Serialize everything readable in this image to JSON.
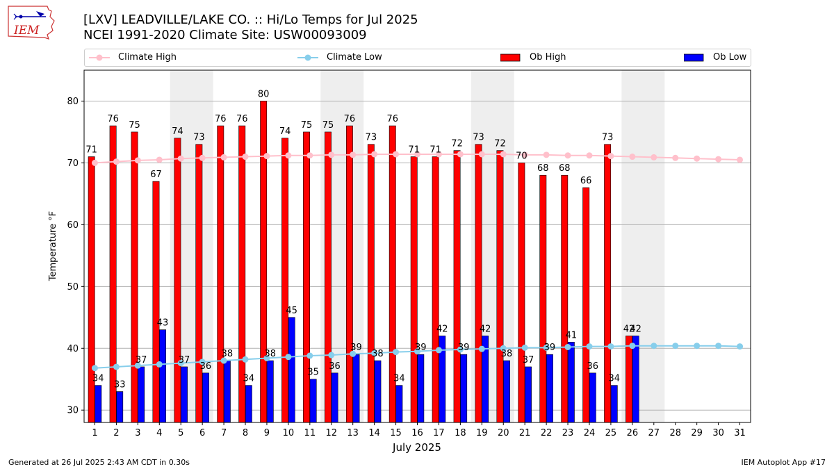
{
  "header": {
    "logo_text": "IEM",
    "title_line1": "[LXV] LEADVILLE/LAKE CO. :: Hi/Lo Temps for Jul 2025",
    "title_line2": "NCEI 1991-2020 Climate Site: USW00093009"
  },
  "legend": {
    "climate_high": "Climate High",
    "climate_low": "Climate Low",
    "ob_high": "Ob High",
    "ob_low": "Ob Low"
  },
  "colors": {
    "ob_high": "#ff0000",
    "ob_low": "#0000ff",
    "climate_high": "#ffc0cb",
    "climate_low": "#87ceeb",
    "weekend_shade": "#eeeeee",
    "grid": "#b0b0b0"
  },
  "chart_data": {
    "type": "bar",
    "title": "[LXV] LEADVILLE/LAKE CO. :: Hi/Lo Temps for Jul 2025",
    "subtitle": "NCEI 1991-2020 Climate Site: USW00093009",
    "xlabel": "July 2025",
    "ylabel": "Temperature °F",
    "ylim": [
      28,
      85
    ],
    "yticks": [
      30,
      40,
      50,
      60,
      70,
      80
    ],
    "grid": true,
    "legend_position": "top",
    "categories": [
      "1",
      "2",
      "3",
      "4",
      "5",
      "6",
      "7",
      "8",
      "9",
      "10",
      "11",
      "12",
      "13",
      "14",
      "15",
      "16",
      "17",
      "18",
      "19",
      "20",
      "21",
      "22",
      "23",
      "24",
      "25",
      "26",
      "27",
      "28",
      "29",
      "30",
      "31"
    ],
    "shaded_days": [
      [
        5,
        6
      ],
      [
        12,
        13
      ],
      [
        19,
        20
      ],
      [
        26,
        27
      ]
    ],
    "series": [
      {
        "name": "Ob High",
        "kind": "bar",
        "values": [
          71,
          76,
          75,
          67,
          74,
          73,
          76,
          76,
          80,
          74,
          75,
          75,
          76,
          73,
          76,
          71,
          71,
          72,
          73,
          72,
          70,
          68,
          68,
          66,
          73,
          42,
          null,
          null,
          null,
          null,
          null
        ]
      },
      {
        "name": "Ob Low",
        "kind": "bar",
        "values": [
          34,
          33,
          37,
          43,
          37,
          36,
          38,
          34,
          38,
          45,
          35,
          36,
          39,
          38,
          34,
          39,
          42,
          39,
          42,
          38,
          37,
          39,
          41,
          36,
          34,
          42,
          null,
          null,
          null,
          null,
          null
        ]
      },
      {
        "name": "Climate High",
        "kind": "line",
        "values": [
          70.0,
          70.2,
          70.4,
          70.5,
          70.7,
          70.8,
          70.9,
          71.0,
          71.1,
          71.2,
          71.2,
          71.3,
          71.3,
          71.4,
          71.4,
          71.4,
          71.4,
          71.4,
          71.4,
          71.4,
          71.3,
          71.3,
          71.2,
          71.2,
          71.1,
          71.0,
          70.9,
          70.8,
          70.7,
          70.6,
          70.5
        ]
      },
      {
        "name": "Climate Low",
        "kind": "line",
        "values": [
          36.8,
          37.0,
          37.2,
          37.4,
          37.6,
          37.8,
          38.0,
          38.2,
          38.4,
          38.6,
          38.8,
          38.9,
          39.1,
          39.2,
          39.4,
          39.5,
          39.7,
          39.8,
          39.9,
          40.0,
          40.1,
          40.1,
          40.2,
          40.3,
          40.3,
          40.4,
          40.4,
          40.4,
          40.4,
          40.4,
          40.3
        ]
      }
    ]
  },
  "footer": {
    "left": "Generated at 26 Jul 2025 2:43 AM CDT in 0.30s",
    "right": "IEM Autoplot App #17"
  }
}
